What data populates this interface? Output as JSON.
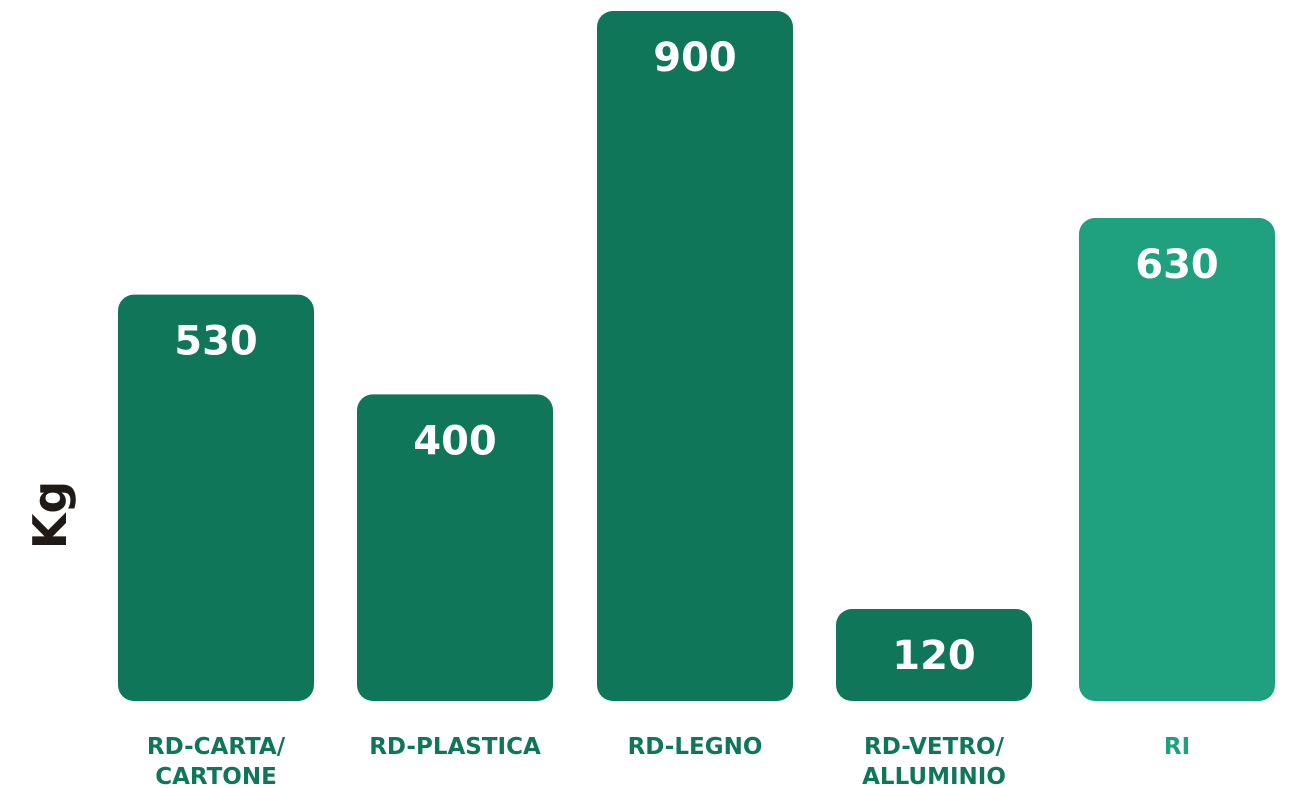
{
  "chart_data": {
    "type": "bar",
    "ylabel": "Kg",
    "categories": [
      [
        "RD-CARTA/",
        "CARTONE"
      ],
      [
        "RD-PLASTICA"
      ],
      [
        "RD-LEGNO"
      ],
      [
        "RD-VETRO/",
        "ALLUMINIO"
      ],
      [
        "RI"
      ]
    ],
    "values": [
      530,
      400,
      900,
      120,
      630
    ],
    "value_labels": [
      "530",
      "400",
      "900",
      "120",
      "630"
    ],
    "bar_colors": [
      "#10765a",
      "#10765a",
      "#10765a",
      "#10765a",
      "#1fa07f"
    ],
    "label_colors": [
      "#10765a",
      "#10765a",
      "#10765a",
      "#10765a",
      "#1fa07f"
    ],
    "ylim": [
      0,
      900
    ],
    "grid": false,
    "legend": "none"
  }
}
